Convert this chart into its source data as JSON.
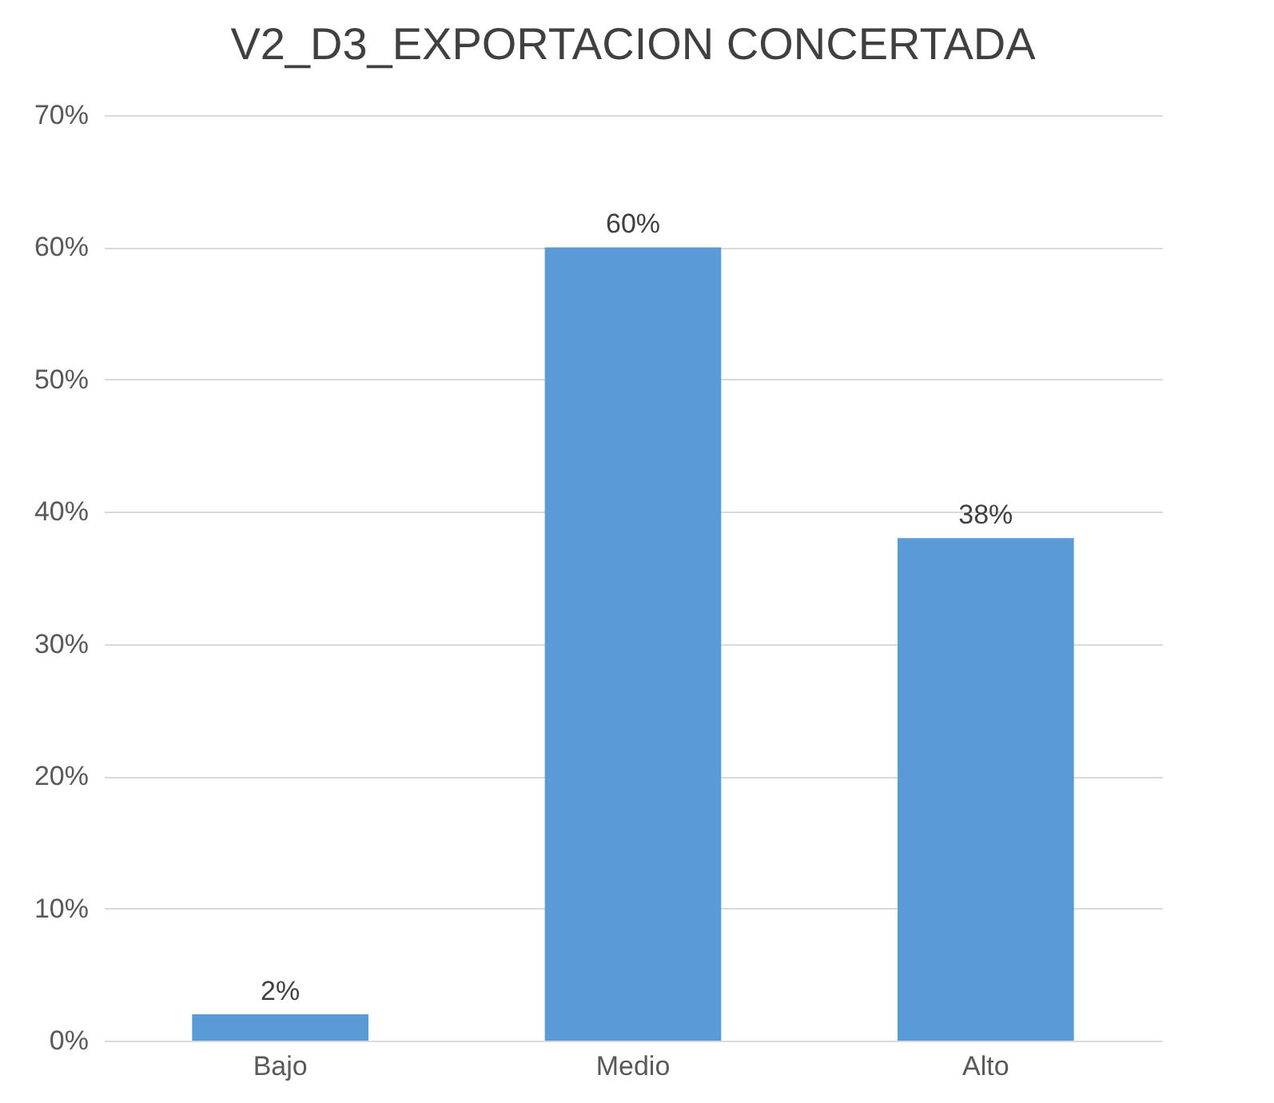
{
  "chart_data": {
    "type": "bar",
    "title": "V2_D3_EXPORTACION CONCERTADA",
    "categories": [
      "Bajo",
      "Medio",
      "Alto"
    ],
    "values": [
      2,
      60,
      38
    ],
    "value_labels": [
      "2%",
      "60%",
      "38%"
    ],
    "color": "#5b9bd5",
    "ylim": [
      0,
      70
    ],
    "yticks": [
      {
        "value": 0,
        "label": "0%"
      },
      {
        "value": 10,
        "label": "10%"
      },
      {
        "value": 20,
        "label": "20%"
      },
      {
        "value": 30,
        "label": "30%"
      },
      {
        "value": 40,
        "label": "40%"
      },
      {
        "value": 50,
        "label": "50%"
      },
      {
        "value": 60,
        "label": "60%"
      },
      {
        "value": 70,
        "label": "70%"
      }
    ],
    "grid": "y"
  }
}
